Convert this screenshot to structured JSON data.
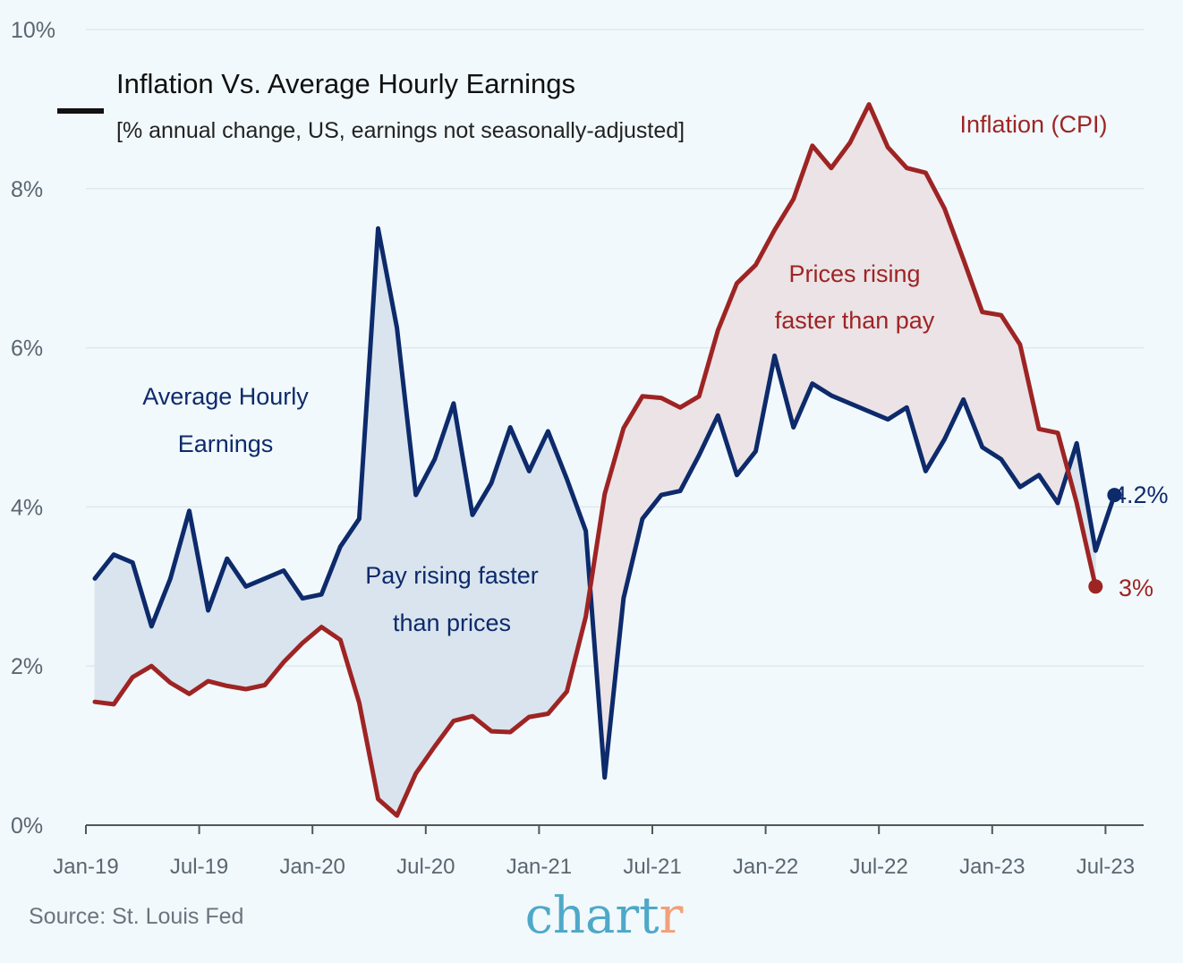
{
  "chart_data": {
    "type": "line",
    "title": "Inflation Vs. Average Hourly Earnings",
    "subtitle": "[% annual change, US, earnings not seasonally-adjusted]",
    "ylim": [
      0,
      10
    ],
    "y_ticks": [
      {
        "value": 0,
        "label": "0%"
      },
      {
        "value": 2,
        "label": "2%"
      },
      {
        "value": 4,
        "label": "4%"
      },
      {
        "value": 6,
        "label": "6%"
      },
      {
        "value": 8,
        "label": "8%"
      },
      {
        "value": 10,
        "label": "10%"
      }
    ],
    "x_ticks": [
      {
        "month": 0,
        "label": "Jan-19"
      },
      {
        "month": 6,
        "label": "Jul-19"
      },
      {
        "month": 12,
        "label": "Jan-20"
      },
      {
        "month": 18,
        "label": "Jul-20"
      },
      {
        "month": 24,
        "label": "Jan-21"
      },
      {
        "month": 30,
        "label": "Jul-21"
      },
      {
        "month": 36,
        "label": "Jan-22"
      },
      {
        "month": 42,
        "label": "Jul-22"
      },
      {
        "month": 48,
        "label": "Jan-23"
      },
      {
        "month": 54,
        "label": "Jul-23"
      }
    ],
    "grid": true,
    "series": [
      {
        "name": "Average Hourly Earnings",
        "label_lines": [
          "Average Hourly",
          "Earnings"
        ],
        "color": "#0d2a6b",
        "end_label": "4.2%",
        "values": [
          3.1,
          3.4,
          3.3,
          2.5,
          3.1,
          3.95,
          2.7,
          3.35,
          3.0,
          3.1,
          3.2,
          2.85,
          2.9,
          3.5,
          3.85,
          7.5,
          6.25,
          4.15,
          4.6,
          5.3,
          3.9,
          4.3,
          5.0,
          4.45,
          4.95,
          4.35,
          3.7,
          0.6,
          2.85,
          3.85,
          4.15,
          4.2,
          4.65,
          5.15,
          4.4,
          4.7,
          5.9,
          5.0,
          5.55,
          5.4,
          5.3,
          5.2,
          5.1,
          5.25,
          4.45,
          4.85,
          5.35,
          4.75,
          4.6,
          4.25,
          4.4,
          4.05,
          4.8,
          3.45,
          4.15
        ]
      },
      {
        "name": "Inflation (CPI)",
        "label_lines": [
          "Inflation (CPI)"
        ],
        "color": "#9e2424",
        "end_label": "3%",
        "values": [
          1.55,
          1.52,
          1.86,
          2.0,
          1.79,
          1.65,
          1.81,
          1.75,
          1.71,
          1.76,
          2.05,
          2.29,
          2.49,
          2.33,
          1.54,
          0.33,
          0.12,
          0.65,
          0.99,
          1.31,
          1.37,
          1.18,
          1.17,
          1.36,
          1.4,
          1.68,
          2.62,
          4.16,
          4.99,
          5.39,
          5.37,
          5.25,
          5.39,
          6.22,
          6.81,
          7.04,
          7.48,
          7.87,
          8.54,
          8.26,
          8.58,
          9.06,
          8.52,
          8.26,
          8.2,
          7.75,
          7.11,
          6.45,
          6.41,
          6.04,
          4.98,
          4.93,
          4.05,
          3.0
        ]
      }
    ],
    "annotations": {
      "pay_faster": [
        "Pay rising faster",
        "than prices"
      ],
      "prices_faster": [
        "Prices rising",
        "faster than pay"
      ]
    },
    "source": "Source: St. Louis Fed",
    "brand": {
      "main": "chart",
      "accent": "r",
      "main_color": "#4fa8c8",
      "accent_color": "#f2a07b"
    },
    "colors": {
      "background": "#f1f9fc",
      "pay_fill": "#d9e4ee",
      "price_fill": "#ebe3e6",
      "grid": "#dde9ee"
    }
  }
}
